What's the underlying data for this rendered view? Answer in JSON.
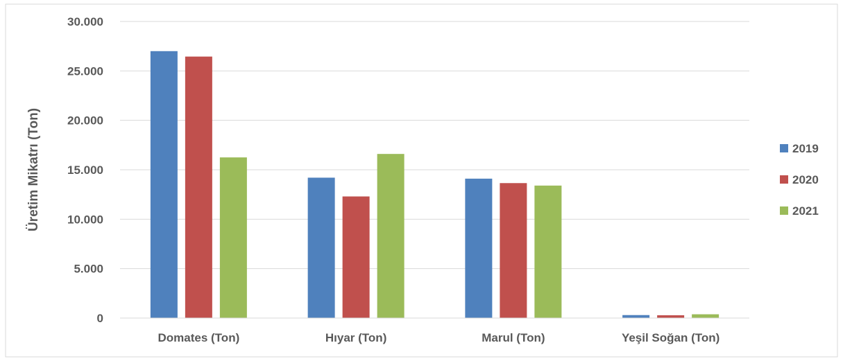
{
  "chart_data": {
    "type": "bar",
    "title": "",
    "xlabel": "",
    "ylabel": "Üretim Mikatrı (Ton)",
    "categories": [
      "Domates (Ton)",
      "Hıyar (Ton)",
      "Marul (Ton)",
      "Yeşil Soğan (Ton)"
    ],
    "series": [
      {
        "name": "2019",
        "color": "#4F81BD",
        "values": [
          27000,
          14200,
          14100,
          300
        ]
      },
      {
        "name": "2020",
        "color": "#C0504D",
        "values": [
          26450,
          12300,
          13650,
          280
        ]
      },
      {
        "name": "2021",
        "color": "#9BBB59",
        "values": [
          16250,
          16600,
          13400,
          380
        ]
      }
    ],
    "ylim": [
      0,
      30000
    ],
    "yticks": [
      {
        "value": 0,
        "label": "0"
      },
      {
        "value": 5000,
        "label": "5.000"
      },
      {
        "value": 10000,
        "label": "10.000"
      },
      {
        "value": 15000,
        "label": "15.000"
      },
      {
        "value": 20000,
        "label": "20.000"
      },
      {
        "value": 25000,
        "label": "25.000"
      },
      {
        "value": 30000,
        "label": "30.000"
      }
    ],
    "grid": true,
    "legend_position": "right",
    "colors": {
      "grid": "#D9D9D9",
      "text": "#595959",
      "border": "#D9D9D9"
    }
  }
}
